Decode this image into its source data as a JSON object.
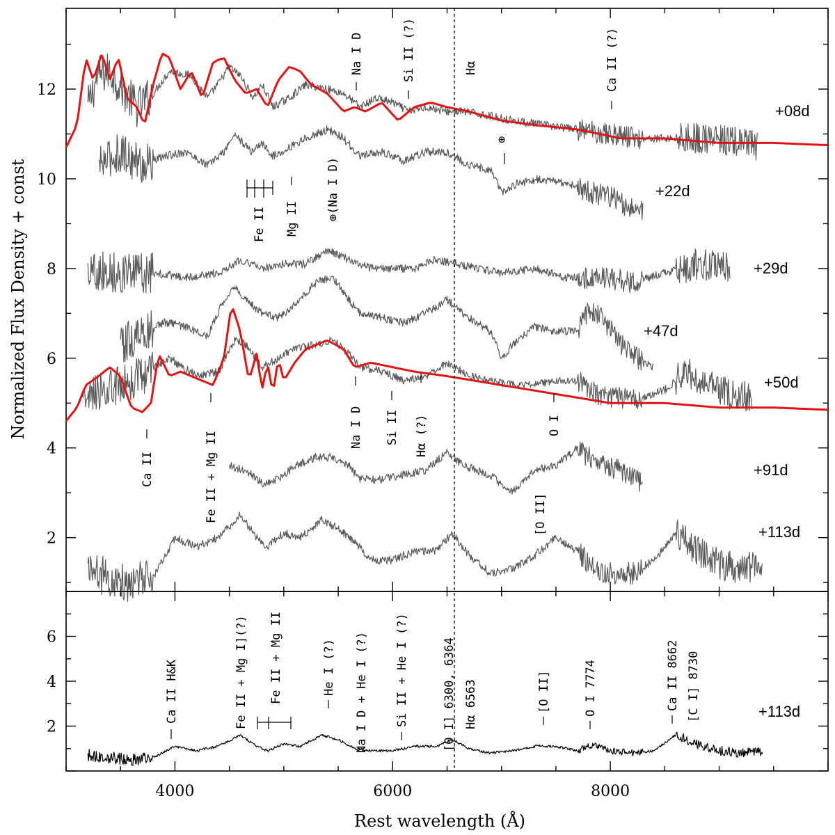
{
  "colors": {
    "spectrum": "#5a5a5a",
    "spectrum_bottom": "#000000",
    "model": "#e01414",
    "halpha_line": "#000000"
  },
  "chart_data": [
    {
      "type": "line",
      "panel": "top",
      "xlabel": "",
      "ylabel": "Normalized Flux Density + const",
      "xlim": [
        3000,
        10000
      ],
      "ylim": [
        0.8,
        13.8
      ],
      "x_ticks": [
        4000,
        6000,
        8000
      ],
      "y_ticks": [
        2,
        4,
        6,
        8,
        10,
        12
      ],
      "y_tick_labels": [
        "2",
        "4",
        "6",
        "8",
        "10",
        "12"
      ],
      "reference_line": {
        "label": "Hα",
        "x": 6563,
        "style": "dotted"
      },
      "series": [
        {
          "name": "+08d",
          "kind": "observed",
          "x": [
            3200,
            3290,
            3400,
            3520,
            3650,
            3800,
            3950,
            4150,
            4300,
            4420,
            4500,
            4600,
            4720,
            4800,
            4900,
            5050,
            5200,
            5400,
            5550,
            5700,
            5850,
            6000,
            6150,
            6300,
            6500,
            6650,
            6900,
            7100,
            7400,
            7700,
            8000,
            8300,
            8600,
            8900,
            9200,
            9350
          ],
          "y": [
            11.6,
            12.3,
            12.4,
            12.0,
            11.6,
            11.9,
            12.4,
            12.3,
            11.8,
            12.2,
            12.5,
            12.3,
            11.8,
            12.1,
            11.6,
            11.8,
            12.1,
            12.0,
            11.9,
            11.6,
            11.8,
            11.7,
            11.5,
            11.6,
            11.5,
            11.5,
            11.4,
            11.3,
            11.2,
            11.1,
            11.0,
            10.9,
            10.9,
            10.9,
            10.8,
            10.7
          ]
        },
        {
          "name": "+22d",
          "kind": "observed",
          "x": [
            3300,
            3500,
            3700,
            3900,
            4100,
            4300,
            4450,
            4550,
            4700,
            4800,
            4900,
            5050,
            5200,
            5400,
            5550,
            5700,
            5900,
            6100,
            6300,
            6500,
            6700,
            6900,
            7000,
            7150,
            7350,
            7600,
            7800,
            8000,
            8150,
            8300
          ],
          "y": [
            10.3,
            10.6,
            10.3,
            10.5,
            10.6,
            10.3,
            10.6,
            11.0,
            10.6,
            10.8,
            10.5,
            10.7,
            10.9,
            11.1,
            10.9,
            10.5,
            10.6,
            10.4,
            10.6,
            10.6,
            10.3,
            10.2,
            9.7,
            9.9,
            10.0,
            9.9,
            9.7,
            9.6,
            9.4,
            9.3
          ]
        },
        {
          "name": "+29d",
          "kind": "observed",
          "x": [
            3200,
            3500,
            3800,
            4100,
            4400,
            4600,
            4800,
            5000,
            5200,
            5400,
            5600,
            5800,
            6000,
            6200,
            6400,
            6600,
            6800,
            7000,
            7300,
            7600,
            7900,
            8200,
            8500,
            8800,
            9100
          ],
          "y": [
            8.0,
            7.9,
            7.9,
            7.8,
            7.9,
            8.2,
            8.0,
            8.1,
            8.1,
            8.4,
            8.2,
            8.0,
            8.0,
            8.0,
            8.2,
            8.1,
            8.0,
            7.9,
            8.0,
            7.8,
            7.8,
            7.7,
            7.9,
            8.1,
            8.0
          ]
        },
        {
          "name": "+47d",
          "kind": "observed",
          "x": [
            3500,
            3750,
            3900,
            4100,
            4300,
            4450,
            4550,
            4650,
            4800,
            4950,
            5100,
            5300,
            5450,
            5600,
            5700,
            5900,
            6100,
            6300,
            6500,
            6700,
            6900,
            7000,
            7100,
            7300,
            7500,
            7700,
            7800,
            7900,
            8100,
            8300,
            8400
          ],
          "y": [
            6.3,
            6.6,
            6.8,
            6.7,
            6.5,
            7.3,
            7.6,
            7.3,
            7.0,
            6.9,
            7.2,
            7.7,
            7.8,
            7.3,
            7.0,
            6.9,
            6.8,
            7.0,
            7.3,
            6.9,
            6.6,
            6.0,
            6.3,
            6.7,
            6.6,
            6.6,
            7.1,
            7.0,
            6.3,
            5.9,
            5.8
          ]
        },
        {
          "name": "+50d",
          "kind": "observed",
          "x": [
            3150,
            3400,
            3700,
            3950,
            4200,
            4400,
            4550,
            4650,
            4800,
            4950,
            5100,
            5300,
            5450,
            5600,
            5700,
            5900,
            6100,
            6300,
            6500,
            6700,
            6900,
            7100,
            7300,
            7500,
            7700,
            7900,
            8100,
            8300,
            8500,
            8700,
            8900,
            9100,
            9300
          ],
          "y": [
            5.1,
            5.3,
            5.6,
            6.0,
            5.6,
            5.7,
            6.4,
            6.3,
            5.8,
            6.0,
            6.2,
            6.3,
            6.4,
            6.1,
            5.8,
            5.7,
            5.5,
            5.6,
            5.9,
            5.6,
            5.5,
            5.4,
            5.4,
            5.5,
            5.5,
            5.2,
            5.1,
            5.1,
            5.3,
            5.7,
            5.4,
            5.2,
            5.1
          ]
        },
        {
          "name": "+91d",
          "kind": "observed",
          "x": [
            4500,
            4650,
            4800,
            4950,
            5100,
            5300,
            5450,
            5600,
            5700,
            5900,
            6100,
            6300,
            6500,
            6650,
            6900,
            7100,
            7300,
            7500,
            7700,
            7900,
            8100,
            8300
          ],
          "y": [
            3.6,
            3.5,
            3.2,
            3.3,
            3.6,
            3.8,
            3.8,
            3.6,
            3.3,
            3.3,
            3.4,
            3.5,
            3.9,
            3.6,
            3.4,
            3.0,
            3.5,
            3.6,
            4.0,
            3.6,
            3.5,
            3.2
          ]
        },
        {
          "name": "+113d",
          "kind": "observed",
          "x": [
            3200,
            3400,
            3600,
            3800,
            4000,
            4200,
            4400,
            4600,
            4750,
            4850,
            5000,
            5150,
            5350,
            5500,
            5650,
            5800,
            6000,
            6200,
            6400,
            6550,
            6700,
            6900,
            7100,
            7300,
            7500,
            7700,
            7850,
            8000,
            8200,
            8400,
            8600,
            8800,
            9000,
            9200,
            9400
          ],
          "y": [
            1.3,
            1.1,
            1.0,
            1.1,
            2.0,
            1.8,
            2.0,
            2.5,
            2.0,
            1.8,
            2.1,
            2.0,
            2.4,
            2.2,
            1.9,
            1.5,
            1.5,
            1.7,
            1.7,
            2.1,
            1.6,
            1.2,
            1.3,
            1.6,
            2.0,
            1.7,
            1.3,
            1.2,
            1.2,
            1.5,
            2.1,
            1.7,
            1.4,
            1.3,
            1.4
          ]
        },
        {
          "name": "model +08d",
          "kind": "model",
          "x": [
            3000,
            3100,
            3180,
            3250,
            3330,
            3400,
            3480,
            3560,
            3650,
            3720,
            3800,
            3880,
            3950,
            4050,
            4150,
            4250,
            4350,
            4450,
            4550,
            4650,
            4750,
            4850,
            4950,
            5050,
            5150,
            5250,
            5400,
            5550,
            5650,
            5750,
            5900,
            6050,
            6200,
            6350,
            6500,
            6700,
            7000,
            7300,
            7700,
            8100,
            8500,
            9000,
            9500,
            10000
          ],
          "y": [
            10.7,
            11.2,
            12.7,
            12.2,
            12.8,
            12.2,
            12.7,
            11.8,
            11.6,
            11.2,
            12.1,
            12.8,
            12.7,
            12.0,
            12.4,
            11.8,
            12.6,
            12.7,
            12.2,
            11.9,
            12.0,
            11.6,
            12.2,
            12.5,
            12.4,
            12.1,
            11.9,
            11.5,
            11.6,
            11.5,
            11.7,
            11.3,
            11.6,
            11.7,
            11.6,
            11.5,
            11.3,
            11.2,
            11.1,
            10.9,
            10.9,
            10.8,
            10.8,
            10.75
          ]
        },
        {
          "name": "model +50d",
          "kind": "model",
          "x": [
            3000,
            3100,
            3180,
            3300,
            3400,
            3500,
            3600,
            3700,
            3780,
            3850,
            3950,
            4050,
            4150,
            4250,
            4350,
            4450,
            4520,
            4600,
            4680,
            4750,
            4800,
            4850,
            4900,
            4950,
            5000,
            5100,
            5200,
            5300,
            5400,
            5550,
            5650,
            5800,
            6000,
            6200,
            6500,
            7000,
            7500,
            8000,
            8500,
            9000,
            9500,
            10000
          ],
          "y": [
            4.6,
            4.9,
            5.4,
            5.6,
            5.8,
            5.6,
            4.9,
            4.8,
            5.0,
            6.1,
            5.6,
            5.7,
            5.6,
            5.5,
            5.4,
            6.0,
            7.2,
            6.6,
            5.5,
            6.1,
            5.3,
            5.9,
            5.2,
            6.0,
            5.5,
            5.9,
            6.2,
            6.3,
            6.4,
            6.2,
            5.8,
            5.9,
            5.8,
            5.7,
            5.6,
            5.4,
            5.2,
            5.0,
            5.0,
            4.9,
            4.9,
            4.85
          ]
        }
      ],
      "annotations": [
        "Na I D",
        "Si II (?)",
        "Hα",
        "Ca II (?)",
        "⊕",
        "Fe II",
        "Mg II",
        "⊕(Na I D)",
        "Ca II",
        "Fe II + Mg II",
        "Na I D",
        "Si II",
        "Hα (?)",
        "O I",
        "[O II]"
      ]
    },
    {
      "type": "line",
      "panel": "bottom",
      "xlabel": "Rest wavelength (Å)",
      "ylabel": "",
      "xlim": [
        3000,
        10000
      ],
      "ylim": [
        0,
        8
      ],
      "x_ticks": [
        4000,
        6000,
        8000
      ],
      "x_tick_labels": [
        "4000",
        "6000",
        "8000"
      ],
      "y_ticks": [
        2,
        4,
        6
      ],
      "y_tick_labels": [
        "2",
        "4",
        "6"
      ],
      "series": [
        {
          "name": "+113d",
          "kind": "observed",
          "x": [
            3200,
            3400,
            3600,
            3800,
            4000,
            4200,
            4400,
            4600,
            4750,
            4850,
            5000,
            5150,
            5350,
            5500,
            5650,
            5800,
            6000,
            6200,
            6400,
            6550,
            6700,
            6900,
            7100,
            7300,
            7500,
            7700,
            7850,
            8000,
            8200,
            8400,
            8600,
            8800,
            9000,
            9200,
            9400
          ],
          "y": [
            0.7,
            0.6,
            0.5,
            0.6,
            1.1,
            0.9,
            1.1,
            1.6,
            1.1,
            0.9,
            1.2,
            1.1,
            1.6,
            1.4,
            1.0,
            0.9,
            0.9,
            1.1,
            1.1,
            1.4,
            1.0,
            0.8,
            0.9,
            1.1,
            1.1,
            0.9,
            1.2,
            0.9,
            0.8,
            0.9,
            1.6,
            1.2,
            0.9,
            0.8,
            0.9
          ]
        }
      ],
      "annotations": [
        "Ca II H&K",
        "Fe II + Mg I](?)",
        "Fe II + Mg II",
        "He I (?)",
        "Na I D + He I (?)",
        "Si II + He I (?)",
        "[O I] 6300, 6364",
        "Hα 6563",
        "[O II]",
        "O I 7774",
        "Ca II 8662",
        "[C I] 8730"
      ]
    }
  ]
}
